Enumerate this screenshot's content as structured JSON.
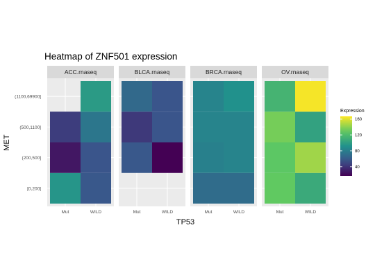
{
  "chart_data": {
    "type": "heatmap",
    "title": "Heatmap of ZNF501 expression",
    "xlabel": "TP53",
    "ylabel": "MET",
    "x_categories": [
      "Mut",
      "WILD"
    ],
    "y_categories": [
      "[0,200]",
      "(200,500]",
      "(500,1100]",
      "(1100,69900]"
    ],
    "legend": {
      "title": "Expression",
      "ticks": [
        40,
        80,
        120,
        160
      ],
      "range": [
        17,
        167
      ],
      "position": "right"
    },
    "colorscale": "viridis",
    "facets": [
      {
        "name": "ACC.rnaseq",
        "cells": [
          {
            "x": "Mut",
            "y": "[0,200]",
            "value": 95
          },
          {
            "x": "WILD",
            "y": "[0,200]",
            "value": 58
          },
          {
            "x": "Mut",
            "y": "(200,500]",
            "value": 27
          },
          {
            "x": "WILD",
            "y": "(200,500]",
            "value": 56
          },
          {
            "x": "Mut",
            "y": "(500,1100]",
            "value": 45
          },
          {
            "x": "WILD",
            "y": "(500,1100]",
            "value": 76
          },
          {
            "x": "WILD",
            "y": "(1100,69900]",
            "value": 98
          }
        ]
      },
      {
        "name": "BLCA.rnaseq",
        "cells": [
          {
            "x": "Mut",
            "y": "(200,500]",
            "value": 58
          },
          {
            "x": "WILD",
            "y": "(200,500]",
            "value": 17
          },
          {
            "x": "Mut",
            "y": "(500,1100]",
            "value": 43
          },
          {
            "x": "WILD",
            "y": "(500,1100]",
            "value": 56
          },
          {
            "x": "Mut",
            "y": "(1100,69900]",
            "value": 68
          },
          {
            "x": "WILD",
            "y": "(1100,69900]",
            "value": 56
          }
        ]
      },
      {
        "name": "BRCA.rnaseq",
        "cells": [
          {
            "x": "Mut",
            "y": "[0,200]",
            "value": 70
          },
          {
            "x": "WILD",
            "y": "[0,200]",
            "value": 70
          },
          {
            "x": "Mut",
            "y": "(200,500]",
            "value": 82
          },
          {
            "x": "WILD",
            "y": "(200,500]",
            "value": 84
          },
          {
            "x": "Mut",
            "y": "(500,1100]",
            "value": 84
          },
          {
            "x": "WILD",
            "y": "(500,1100]",
            "value": 84
          },
          {
            "x": "Mut",
            "y": "(1100,69900]",
            "value": 84
          },
          {
            "x": "WILD",
            "y": "(1100,69900]",
            "value": 92
          }
        ]
      },
      {
        "name": "OV.rnaseq",
        "cells": [
          {
            "x": "Mut",
            "y": "[0,200]",
            "value": 130
          },
          {
            "x": "WILD",
            "y": "[0,200]",
            "value": 108
          },
          {
            "x": "Mut",
            "y": "(200,500]",
            "value": 128
          },
          {
            "x": "WILD",
            "y": "(200,500]",
            "value": 145
          },
          {
            "x": "Mut",
            "y": "(500,1100]",
            "value": 135
          },
          {
            "x": "WILD",
            "y": "(500,1100]",
            "value": 103
          },
          {
            "x": "Mut",
            "y": "(1100,69900]",
            "value": 115
          },
          {
            "x": "WILD",
            "y": "(1100,69900]",
            "value": 165
          }
        ]
      }
    ]
  }
}
